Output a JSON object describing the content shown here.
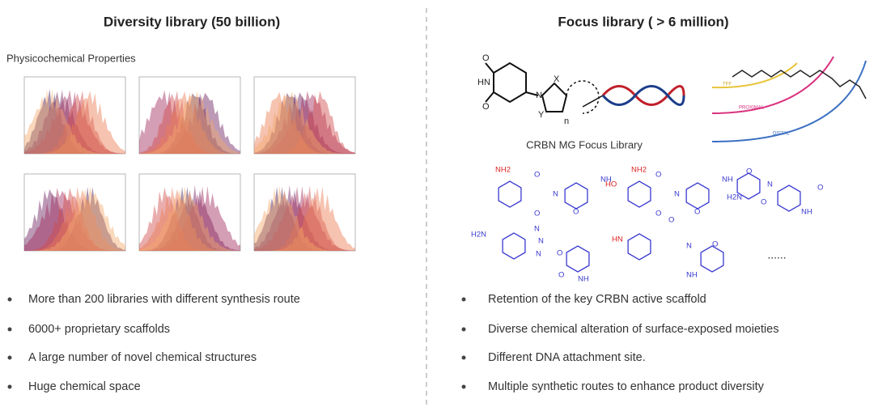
{
  "left": {
    "title": "Diversity library (50 billion)",
    "subtitle": "Physicochemical Properties",
    "bullets": [
      "More than 200 libraries with different synthesis route",
      "6000+ proprietary scaffolds",
      "A large number of novel chemical structures",
      "Huge chemical space"
    ]
  },
  "right": {
    "title": "Focus library ( > 6 million)",
    "core_labels": [
      "O",
      "HN",
      "O",
      "N",
      "X",
      "Y",
      "n"
    ],
    "caption": "CRBN MG Focus Library",
    "linker_labels": [
      "TFF",
      "PROXIMAL",
      "DISTAL"
    ],
    "molecules": [
      {
        "labels": [
          "NH2",
          "O",
          "N",
          "O",
          "NH",
          "O"
        ]
      },
      {
        "labels": [
          "HO",
          "NH2",
          "O",
          "N",
          "O",
          "NH",
          "O"
        ]
      },
      {
        "labels": [
          "O",
          "H2N",
          "N",
          "O",
          "NH",
          "O"
        ]
      },
      {
        "labels": [
          "H2N",
          "N",
          "N",
          "N",
          "O",
          "NH",
          "O"
        ]
      },
      {
        "labels": [
          "HN",
          "N",
          "O",
          "NH",
          "O"
        ]
      }
    ],
    "ellipsis": "......",
    "bullets": [
      "Retention of the key CRBN active scaffold",
      "Diverse chemical alteration of surface-exposed moieties",
      "Different DNA attachment site.",
      "Multiple synthetic routes to enhance product diversity"
    ]
  }
}
